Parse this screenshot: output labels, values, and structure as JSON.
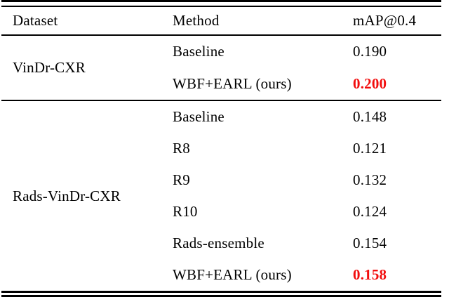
{
  "table": {
    "columns": {
      "dataset": "Dataset",
      "method": "Method",
      "metric": "mAP@0.4"
    },
    "sections": [
      {
        "dataset": "VinDr-CXR",
        "rows": [
          {
            "method": "Baseline",
            "value": "0.190"
          },
          {
            "method": "WBF+EARL (ours)",
            "value": "0.200"
          }
        ]
      },
      {
        "dataset": "Rads-VinDr-CXR",
        "rows": [
          {
            "method": "Baseline",
            "value": "0.148"
          },
          {
            "method": "R8",
            "value": "0.121"
          },
          {
            "method": "R9",
            "value": "0.132"
          },
          {
            "method": "R10",
            "value": "0.124"
          },
          {
            "method": "Rads-ensemble",
            "value": "0.154"
          },
          {
            "method": "WBF+EARL (ours)",
            "value": "0.158"
          }
        ]
      }
    ],
    "colors": {
      "highlight": "#f20d0d",
      "text": "#000000",
      "rule": "#000000"
    }
  }
}
